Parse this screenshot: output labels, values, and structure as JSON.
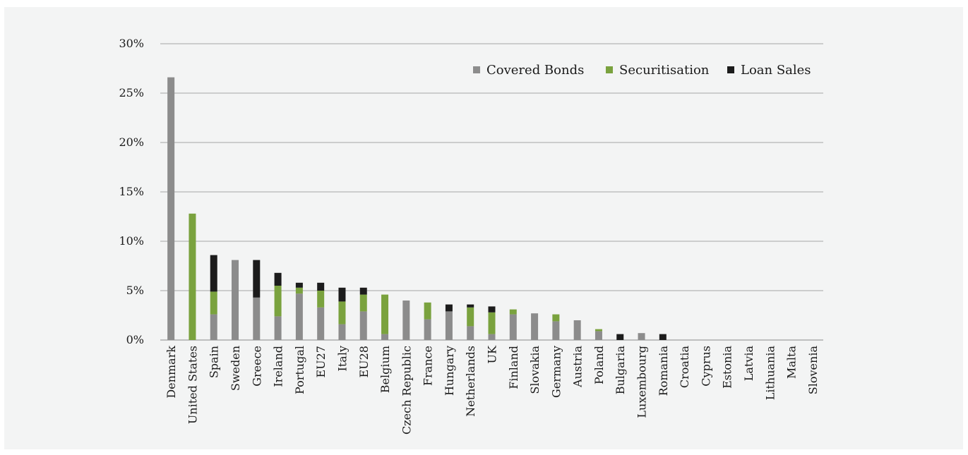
{
  "chart_data": {
    "type": "bar",
    "stacked": true,
    "categories": [
      "Denmark",
      "United States",
      "Spain",
      "Sweden",
      "Greece",
      "Ireland",
      "Portugal",
      "EU27",
      "Italy",
      "EU28",
      "Belgium",
      "Czech Republic",
      "France",
      "Hungary",
      "Netherlands",
      "UK",
      "Finland",
      "Slovakia",
      "Germany",
      "Austria",
      "Poland",
      "Bulgaria",
      "Luxembourg",
      "Romania",
      "Croatia",
      "Cyprus",
      "Estonia",
      "Latvia",
      "Lithuania",
      "Malta",
      "Slovenia"
    ],
    "series": [
      {
        "name": "Covered Bonds",
        "color": "#8c8c8c",
        "values": [
          26.6,
          0,
          2.6,
          8.1,
          4.3,
          2.4,
          4.7,
          3.3,
          1.6,
          2.9,
          0.6,
          4.0,
          2.1,
          2.9,
          1.4,
          0.6,
          2.6,
          2.7,
          1.9,
          2.0,
          0.9,
          0,
          0.7,
          0,
          0,
          0,
          0,
          0,
          0,
          0,
          0
        ]
      },
      {
        "name": "Securitisation",
        "color": "#7aa23e",
        "values": [
          0,
          12.8,
          2.3,
          0,
          0,
          3.1,
          0.6,
          1.7,
          2.3,
          1.7,
          4.0,
          0,
          1.7,
          0,
          1.9,
          2.2,
          0.5,
          0,
          0.7,
          0,
          0.2,
          0,
          0,
          0,
          0,
          0,
          0,
          0,
          0,
          0,
          0
        ]
      },
      {
        "name": "Loan Sales",
        "color": "#1c1c1c",
        "values": [
          0,
          0,
          3.7,
          0,
          3.8,
          1.3,
          0.5,
          0.8,
          1.4,
          0.7,
          0,
          0,
          0,
          0.7,
          0.3,
          0.6,
          0,
          0,
          0,
          0,
          0,
          0.6,
          0,
          0.6,
          0,
          0,
          0,
          0,
          0,
          0,
          0
        ]
      }
    ],
    "ylim": [
      0,
      30
    ],
    "yticks": [
      "0%",
      "5%",
      "10%",
      "15%",
      "20%",
      "25%",
      "30%"
    ],
    "grid": true,
    "legend_position": "top-right",
    "title": "",
    "xlabel": "",
    "ylabel": ""
  }
}
